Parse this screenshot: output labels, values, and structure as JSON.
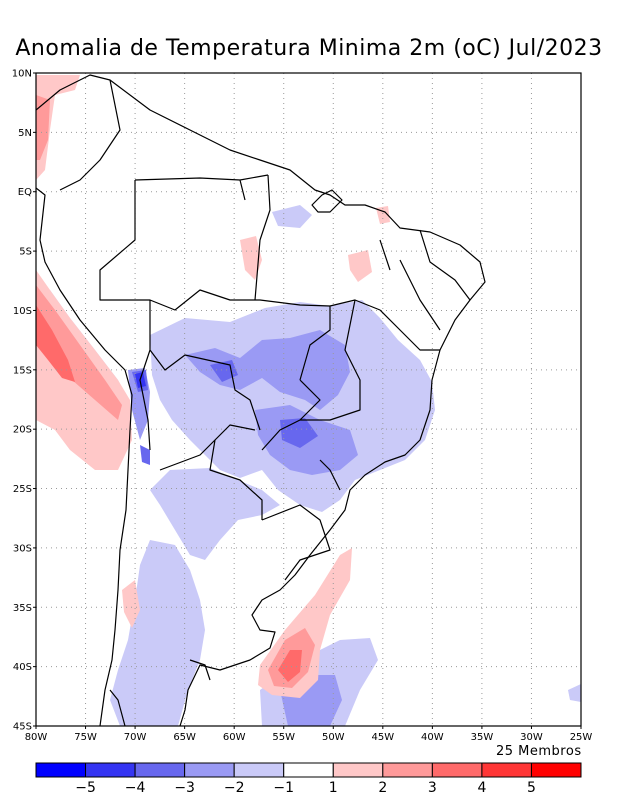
{
  "title": "Anomalia de Temperatura Minima 2m (oC) Jul/2023",
  "members_label": "25 Membros",
  "map": {
    "lon_range": [
      -80,
      -25
    ],
    "lat_range": [
      -45,
      10
    ],
    "lat_labels": [
      "10N",
      "5N",
      "EQ",
      "5S",
      "10S",
      "15S",
      "20S",
      "25S",
      "30S",
      "35S",
      "40S",
      "45S"
    ],
    "lon_labels": [
      "80W",
      "75W",
      "70W",
      "65W",
      "60W",
      "55W",
      "50W",
      "45W",
      "40W",
      "35W",
      "30W",
      "25W"
    ],
    "grid": true
  },
  "colorbar": {
    "colors": [
      "#0000ff",
      "#3434f2",
      "#6767ee",
      "#9a9af4",
      "#cacaf8",
      "#ffffff",
      "#ffc8c8",
      "#ff9a9a",
      "#ff6a6a",
      "#ff3636",
      "#ff0000"
    ],
    "labels": [
      "−5",
      "−4",
      "−3",
      "−2",
      "−1",
      "1",
      "2",
      "3",
      "4",
      "5"
    ]
  }
}
